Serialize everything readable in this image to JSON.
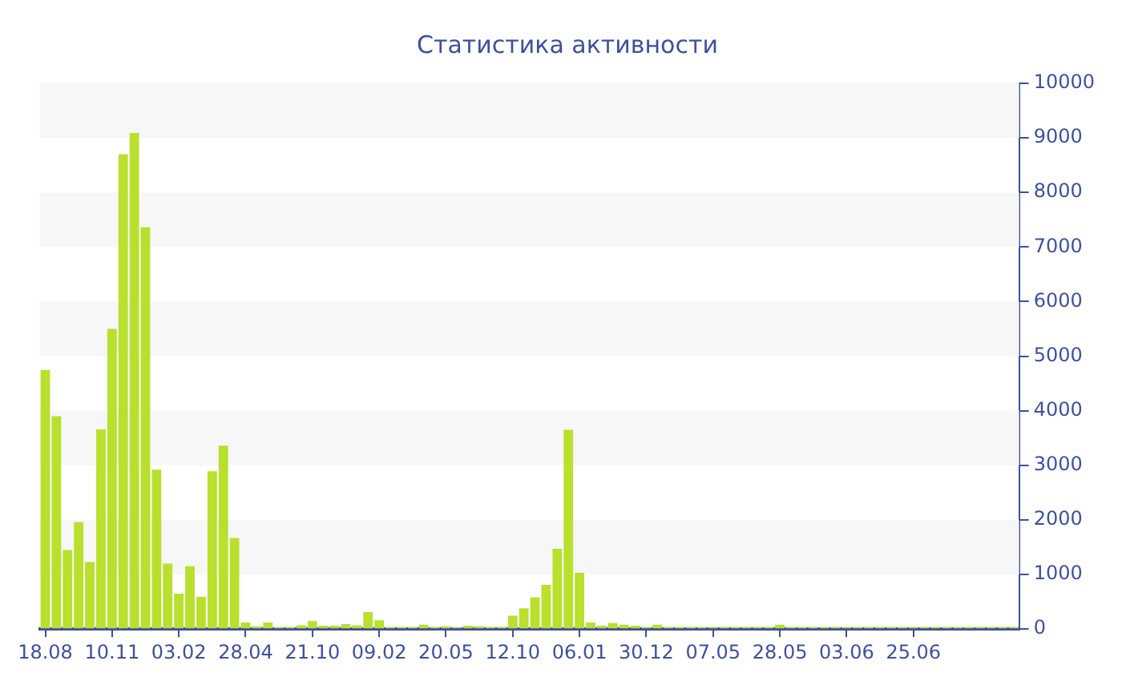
{
  "chart_data": {
    "type": "bar",
    "title": "Статистика активности",
    "categories": [
      "18.08",
      null,
      null,
      null,
      null,
      null,
      "10.11",
      null,
      null,
      null,
      null,
      null,
      "03.02",
      null,
      null,
      null,
      null,
      null,
      "28.04",
      null,
      null,
      null,
      null,
      null,
      "21.10",
      null,
      null,
      null,
      null,
      null,
      "09.02",
      null,
      null,
      null,
      null,
      null,
      "20.05",
      null,
      null,
      null,
      null,
      null,
      "12.10",
      null,
      null,
      null,
      null,
      null,
      "06.01",
      null,
      null,
      null,
      null,
      null,
      "30.12",
      null,
      null,
      null,
      null,
      null,
      "07.05",
      null,
      null,
      null,
      null,
      null,
      "28.05",
      null,
      null,
      null,
      null,
      null,
      "03.06",
      null,
      null,
      null,
      null,
      null,
      "25.06",
      null,
      null,
      null,
      null,
      null,
      null,
      null,
      null,
      null
    ],
    "values": [
      4750,
      3900,
      1450,
      1960,
      1230,
      3660,
      5500,
      8700,
      9090,
      7360,
      2920,
      1200,
      650,
      1150,
      590,
      2890,
      3360,
      1670,
      120,
      50,
      120,
      40,
      40,
      70,
      145,
      60,
      60,
      90,
      70,
      310,
      160,
      40,
      40,
      40,
      80,
      40,
      50,
      30,
      60,
      50,
      40,
      40,
      245,
      380,
      580,
      810,
      1470,
      3650,
      1030,
      120,
      60,
      110,
      80,
      60,
      40,
      80,
      40,
      40,
      40,
      40,
      40,
      40,
      40,
      40,
      40,
      40,
      80,
      40,
      40,
      40,
      40,
      40,
      40,
      40,
      40,
      40,
      40,
      40,
      40,
      40,
      40,
      40,
      40,
      40,
      40,
      40,
      40,
      40
    ],
    "color": "#b8e02c",
    "ylim": [
      0,
      10000
    ],
    "yticks": [
      0,
      1000,
      2000,
      3000,
      4000,
      5000,
      6000,
      7000,
      8000,
      9000,
      10000
    ],
    "bands": [
      {
        "axis": "y",
        "from": 1000,
        "to": 2000,
        "color": "#f7f7f7"
      },
      {
        "axis": "y",
        "from": 3000,
        "to": 4000,
        "color": "#f7f7f7"
      },
      {
        "axis": "y",
        "from": 5000,
        "to": 6000,
        "color": "#f7f7f7"
      },
      {
        "axis": "y",
        "from": 7000,
        "to": 8000,
        "color": "#f7f7f7"
      },
      {
        "axis": "y",
        "from": 9000,
        "to": 10000,
        "color": "#f7f7f7"
      }
    ],
    "grid": false,
    "legend": false
  }
}
